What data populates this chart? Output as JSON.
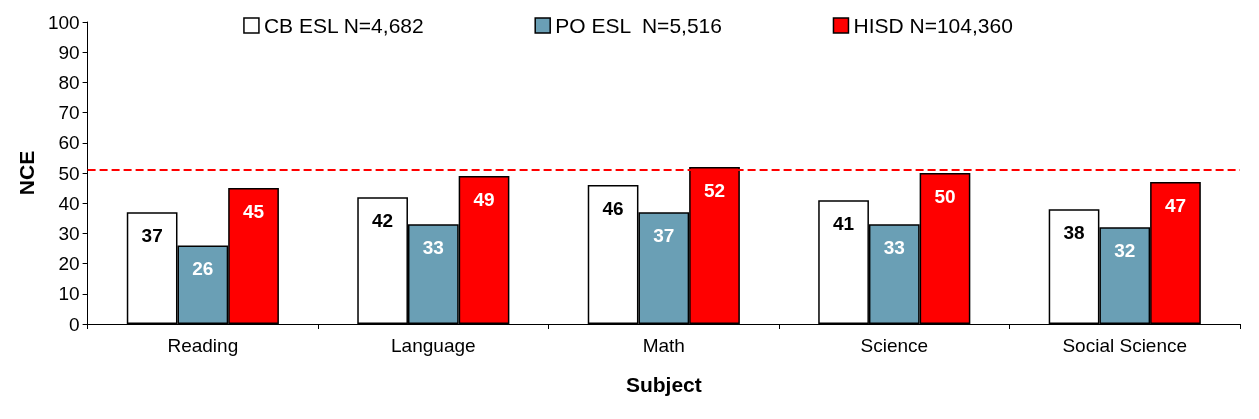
{
  "chart_data": {
    "type": "bar",
    "xlabel": "Subject",
    "ylabel": "NCE",
    "categories": [
      "Reading",
      "Language",
      "Math",
      "Science",
      "Social Science"
    ],
    "series": [
      {
        "name": "CB ESL N=4,682",
        "color": "#ffffff",
        "values": [
          37,
          42,
          46,
          41,
          38
        ]
      },
      {
        "name": "PO ESL  N=5,516",
        "color": "#6a9fb5",
        "values": [
          26,
          33,
          37,
          33,
          32
        ]
      },
      {
        "name": "HISD N=104,360",
        "color": "#ff0000",
        "values": [
          45,
          49,
          52,
          50,
          47
        ]
      }
    ],
    "ylim": [
      0,
      100
    ],
    "yticks": [
      0,
      10,
      20,
      30,
      40,
      50,
      60,
      70,
      80,
      90,
      100
    ],
    "ref_lines": [
      {
        "axis": "y",
        "value": 51,
        "color": "#ff0000",
        "line_style": "dashed"
      }
    ],
    "data_labels": true,
    "grid": false,
    "legend": "top"
  }
}
